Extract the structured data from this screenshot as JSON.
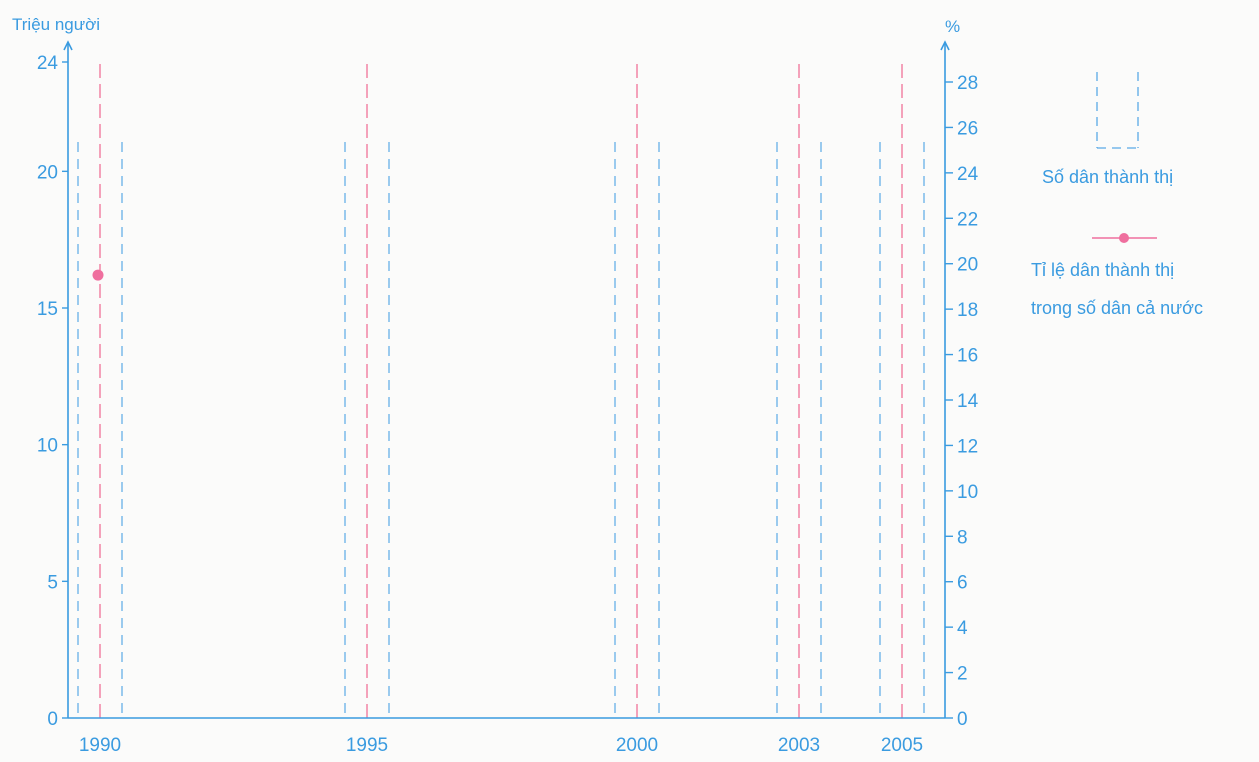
{
  "chart_data": {
    "type": "bar",
    "title": "",
    "categories": [
      "1990",
      "1995",
      "2000",
      "2003",
      "2005"
    ],
    "y_left": {
      "label": "Triệu người",
      "ylim": [
        0,
        24
      ],
      "ticks": [
        0,
        5,
        10,
        15,
        20,
        24
      ]
    },
    "y_right": {
      "label": "%",
      "ylim": [
        0,
        29
      ],
      "ticks": [
        0,
        2,
        4,
        6,
        8,
        10,
        12,
        14,
        16,
        18,
        20,
        22,
        24,
        26,
        28
      ]
    },
    "series": [
      {
        "name": "Số dân thành thị",
        "kind": "bar",
        "axis": "left",
        "values": [
          null,
          null,
          null,
          null,
          null
        ]
      },
      {
        "name": "Tỉ lệ dân thành thị trong số dân cả nước",
        "kind": "line",
        "axis": "right",
        "values": [
          19.5,
          null,
          null,
          null,
          null
        ]
      }
    ],
    "legend": {
      "position": "right",
      "bar_label": "Số dân thành thị",
      "line_label_line1": "Tỉ lệ dân thành thị",
      "line_label_line2": "trong số dân cả nước"
    },
    "colors": {
      "axis": "#3a9be0",
      "bar_guide": "#5aa9e6",
      "line_guide": "#f0668f",
      "point": "#ef6f9e"
    },
    "grid": false
  }
}
